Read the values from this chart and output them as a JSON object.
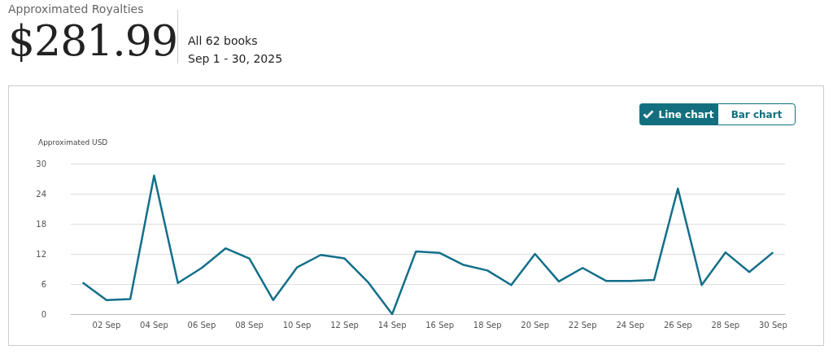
{
  "chart_data": {
    "type": "line",
    "title": "$281.99",
    "subtitle": "Approximated Royalties",
    "ylabel": "Approximated USD",
    "annotations": [
      "All 62 books",
      "Sep 1 - 30, 2025",
      "Line chart",
      "Bar chart"
    ],
    "categories": [
      null,
      "02 Sep",
      null,
      "04 Sep",
      null,
      "06 Sep",
      null,
      "08 Sep",
      null,
      "10 Sep",
      null,
      "12 Sep",
      null,
      "14 Sep",
      null,
      "16 Sep",
      null,
      "18 Sep",
      null,
      "20 Sep",
      null,
      "22 Sep",
      null,
      "24 Sep",
      null,
      "26 Sep",
      null,
      "28 Sep",
      null,
      "30 Sep"
    ],
    "series": [
      {
        "color": "#136f8a",
        "values": [
          6.3,
          2.8,
          3.0,
          27.6,
          6.2,
          9.2,
          13.1,
          11.1,
          2.8,
          9.3,
          11.8,
          11.1,
          6.3,
          0,
          12.5,
          12.2,
          9.8,
          8.7,
          5.8,
          12.0,
          6.5,
          9.2,
          6.6,
          6.6,
          6.8,
          25.0,
          5.8,
          12.3,
          8.4,
          12.3
        ]
      }
    ],
    "ylim": [
      0,
      30
    ],
    "yticks": [
      0,
      6,
      12,
      18,
      24,
      30
    ],
    "grid": "y",
    "marker": "none",
    "line_style": "solid"
  }
}
